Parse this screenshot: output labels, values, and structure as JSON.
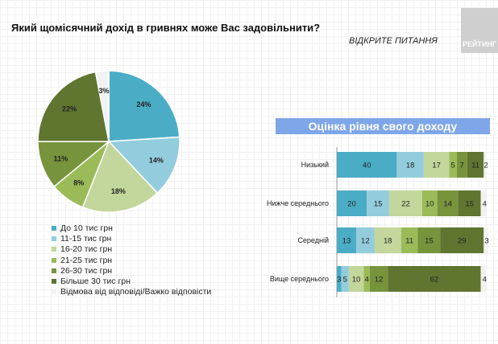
{
  "header": {
    "question": "Який щомісячний дохід в гривнях може Вас задовільнити?",
    "note": "ВІДКРИТЕ ПИТАННЯ",
    "logo": "РЕЙТИНГ"
  },
  "chart_data": [
    {
      "type": "pie",
      "title": "Який щомісячний дохід в гривнях може Вас задовільнити?",
      "categories": [
        "До 10 тис грн",
        "11-15 тис грн",
        "16-20 тис грн",
        "21-25 тис грн",
        "26-30 тис грн",
        "Більше 30 тис грн",
        "Відмова від відповіді/Важко відповісти"
      ],
      "values": [
        24,
        14,
        18,
        8,
        11,
        22,
        3
      ],
      "labels": [
        "24%",
        "14%",
        "18%",
        "8%",
        "11%",
        "22%",
        "3%"
      ],
      "colors": [
        "#4bacc6",
        "#93cddd",
        "#c3d69b",
        "#9bbb59",
        "#77933c",
        "#5f7530",
        "#f2f2f2"
      ],
      "legend": "bottom-left"
    },
    {
      "type": "bar",
      "stacked": true,
      "orientation": "horizontal",
      "title": "Оцінка рівня свого доходу",
      "categories": [
        "Низький",
        "Нижче середнього",
        "Середній",
        "Вище середнього"
      ],
      "series": [
        {
          "name": "До 10 тис грн",
          "values": [
            40,
            20,
            13,
            3
          ]
        },
        {
          "name": "11-15 тис грн",
          "values": [
            18,
            15,
            12,
            5
          ]
        },
        {
          "name": "16-20 тис грн",
          "values": [
            17,
            22,
            18,
            10
          ]
        },
        {
          "name": "21-25 тис грн",
          "values": [
            5,
            10,
            11,
            4
          ]
        },
        {
          "name": "26-30 тис грн",
          "values": [
            7,
            14,
            15,
            12
          ]
        },
        {
          "name": "Більше 30 тис грн",
          "values": [
            11,
            15,
            29,
            62
          ]
        },
        {
          "name": "Відмова від відповіді/Важко відповісти",
          "values": [
            2,
            4,
            3,
            4
          ]
        }
      ]
    }
  ]
}
